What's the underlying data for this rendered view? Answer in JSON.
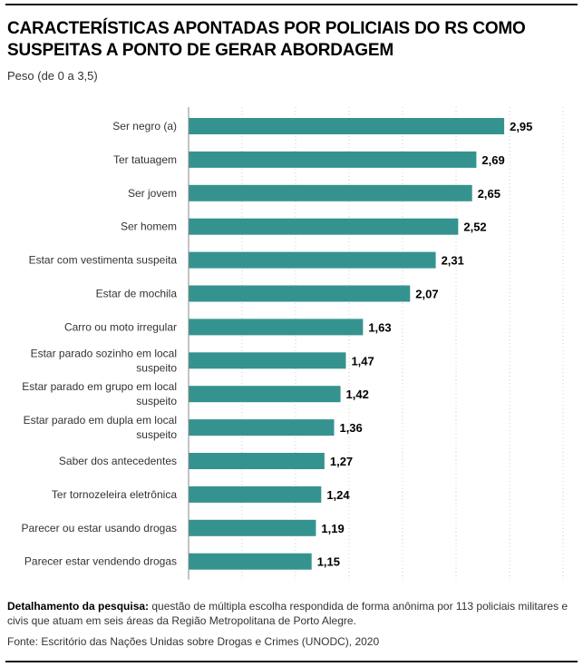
{
  "title": "CARACTERÍSTICAS APONTADAS POR POLICIAIS DO RS COMO SUSPEITAS A PONTO DE GERAR ABORDAGEM",
  "subtitle": "Peso (de 0 a 3,5)",
  "notes": {
    "label": "Detalhamento da pesquisa:",
    "text": " questão de múltipla escolha respondida de forma anônima por 113 policiais militares e civis que atuam em seis áreas da Região Metropolitana de Porto Alegre."
  },
  "source": "Fonte: Escritório das Nações Unidas sobre Drogas e Crimes (UNODC), 2020",
  "colors": {
    "bar": "#35938f",
    "gridline": "#cccccc",
    "axis": "#888888"
  },
  "chart_data": {
    "type": "bar",
    "orientation": "horizontal",
    "title": "CARACTERÍSTICAS APONTADAS POR POLICIAIS DO RS COMO SUSPEITAS A PONTO DE GERAR ABORDAGEM",
    "subtitle": "Peso (de 0 a 3,5)",
    "xlabel": "",
    "ylabel": "",
    "xlim": [
      0,
      3.5
    ],
    "grid": true,
    "grid_step": 0.5,
    "categories": [
      [
        "Ser negro (a)"
      ],
      [
        "Ter tatuagem"
      ],
      [
        "Ser jovem"
      ],
      [
        "Ser homem"
      ],
      [
        "Estar com vestimenta suspeita"
      ],
      [
        "Estar de mochila"
      ],
      [
        "Carro ou moto irregular"
      ],
      [
        "Estar parado sozinho em local",
        "suspeito"
      ],
      [
        "Estar parado em grupo em local",
        "suspeito"
      ],
      [
        "Estar parado em dupla em local",
        "suspeito"
      ],
      [
        "Saber dos antecedentes"
      ],
      [
        "Ter tornozeleira eletrônica"
      ],
      [
        "Parecer ou estar usando drogas"
      ],
      [
        "Parecer estar vendendo drogas"
      ]
    ],
    "values": [
      2.95,
      2.69,
      2.65,
      2.52,
      2.31,
      2.07,
      1.63,
      1.47,
      1.42,
      1.36,
      1.27,
      1.24,
      1.19,
      1.15
    ],
    "value_labels": [
      "2,95",
      "2,69",
      "2,65",
      "2,52",
      "2,31",
      "2,07",
      "1,63",
      "1,47",
      "1,42",
      "1,36",
      "1,27",
      "1,24",
      "1,19",
      "1,15"
    ]
  }
}
